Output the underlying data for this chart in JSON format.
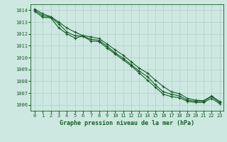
{
  "background_color": "#cce8e0",
  "grid_color": "#b0d0c8",
  "line_color": "#1a5c2a",
  "title": "Graphe pression niveau de la mer (hPa)",
  "ylim": [
    1005.5,
    1014.5
  ],
  "xlim": [
    -0.5,
    23.5
  ],
  "yticks": [
    1006,
    1007,
    1008,
    1009,
    1010,
    1011,
    1012,
    1013,
    1014
  ],
  "xticks": [
    0,
    1,
    2,
    3,
    4,
    5,
    6,
    7,
    8,
    9,
    10,
    11,
    12,
    13,
    14,
    15,
    16,
    17,
    18,
    19,
    20,
    21,
    22,
    23
  ],
  "line1": [
    1014.1,
    1013.7,
    1013.45,
    1013.0,
    1012.5,
    1012.15,
    1011.85,
    1011.75,
    1011.6,
    1011.15,
    1010.65,
    1010.2,
    1009.65,
    1009.1,
    1008.7,
    1008.1,
    1007.55,
    1007.1,
    1006.95,
    1006.55,
    1006.4,
    1006.35,
    1006.75,
    1006.3
  ],
  "line2": [
    1014.0,
    1013.55,
    1013.4,
    1012.85,
    1012.15,
    1011.85,
    1011.8,
    1011.55,
    1011.45,
    1010.95,
    1010.4,
    1009.95,
    1009.4,
    1008.85,
    1008.4,
    1007.7,
    1007.1,
    1006.9,
    1006.75,
    1006.4,
    1006.3,
    1006.3,
    1006.7,
    1006.2
  ],
  "line3": [
    1013.9,
    1013.4,
    1013.35,
    1012.5,
    1012.0,
    1011.65,
    1011.8,
    1011.4,
    1011.35,
    1010.8,
    1010.3,
    1009.8,
    1009.3,
    1008.7,
    1008.1,
    1007.5,
    1006.9,
    1006.7,
    1006.6,
    1006.3,
    1006.2,
    1006.2,
    1006.55,
    1006.1
  ]
}
